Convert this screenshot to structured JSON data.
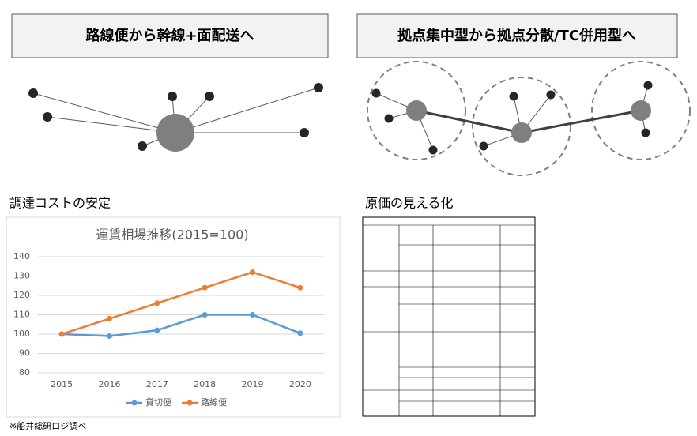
{
  "left_panel": {
    "title": "路線便から幹線+面配送へ",
    "section_title": "調達コストの安定"
  },
  "right_panel": {
    "title": "拠点集中型から拠点分散/TC併用型へ",
    "section_title": "原価の見える化"
  },
  "chart_data": {
    "type": "line",
    "title": "運賃相場推移(2015=100)",
    "categories": [
      "2015",
      "2016",
      "2017",
      "2018",
      "2019",
      "2020"
    ],
    "series": [
      {
        "name": "貸切便",
        "color": "#5b9bd5",
        "values": [
          100,
          99,
          102,
          110,
          110,
          100.5
        ]
      },
      {
        "name": "路線便",
        "color": "#ed7d31",
        "values": [
          100,
          108,
          116,
          124,
          132,
          124
        ]
      }
    ],
    "ylim": [
      80,
      140
    ],
    "yticks": [
      80,
      90,
      100,
      110,
      120,
      130,
      140
    ],
    "grid": true,
    "legend": "bottom"
  },
  "note": "※船井総研ロジ調べ"
}
